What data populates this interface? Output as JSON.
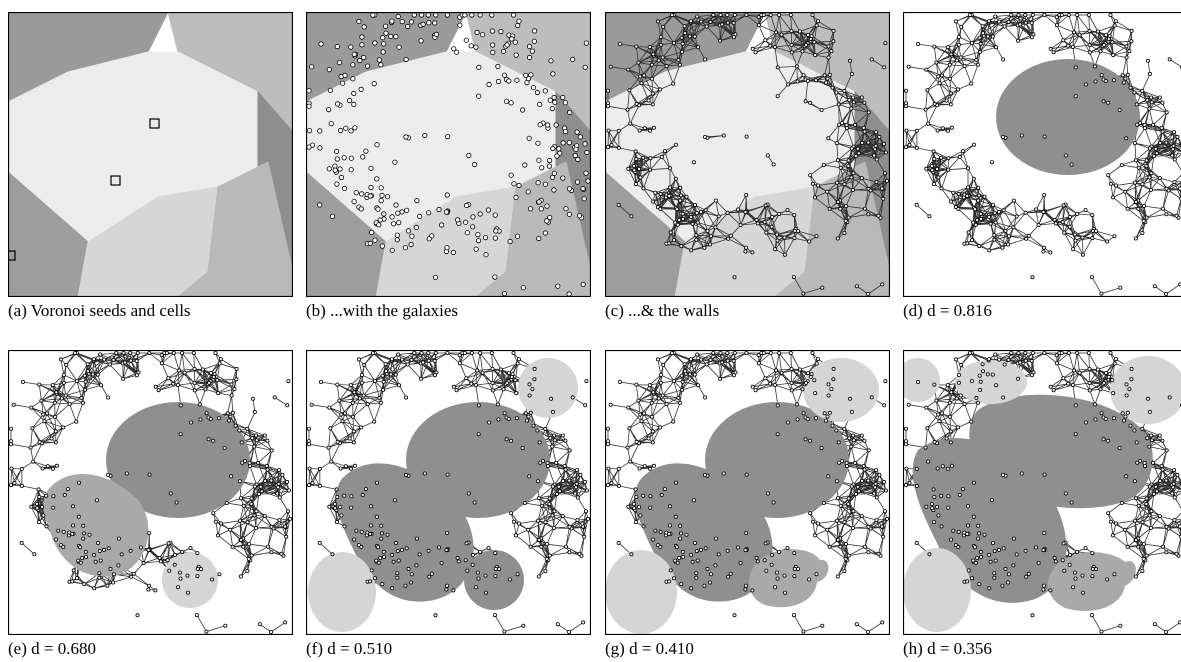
{
  "figure": {
    "panels": [
      {
        "id": "a",
        "caption": "(a) Voronoi seeds and cells"
      },
      {
        "id": "b",
        "caption": "(b) ...with the galaxies"
      },
      {
        "id": "c",
        "caption": "(c) ...& the walls"
      },
      {
        "id": "d",
        "caption": "(d) d = 0.816"
      },
      {
        "id": "e",
        "caption": "(e) d = 0.680"
      },
      {
        "id": "f",
        "caption": "(f) d = 0.510"
      },
      {
        "id": "g",
        "caption": "(g) d = 0.410"
      },
      {
        "id": "h",
        "caption": "(h) d = 0.356"
      }
    ]
  },
  "colors": {
    "cell_light": "#eeeeee",
    "cell_mid": "#d8d8d8",
    "cell_dark": "#a8a8a8",
    "void_dark": "#8f8f8f",
    "void_mid": "#a9a9a9",
    "void_light": "#d5d5d5",
    "wall_line": "#333333"
  }
}
